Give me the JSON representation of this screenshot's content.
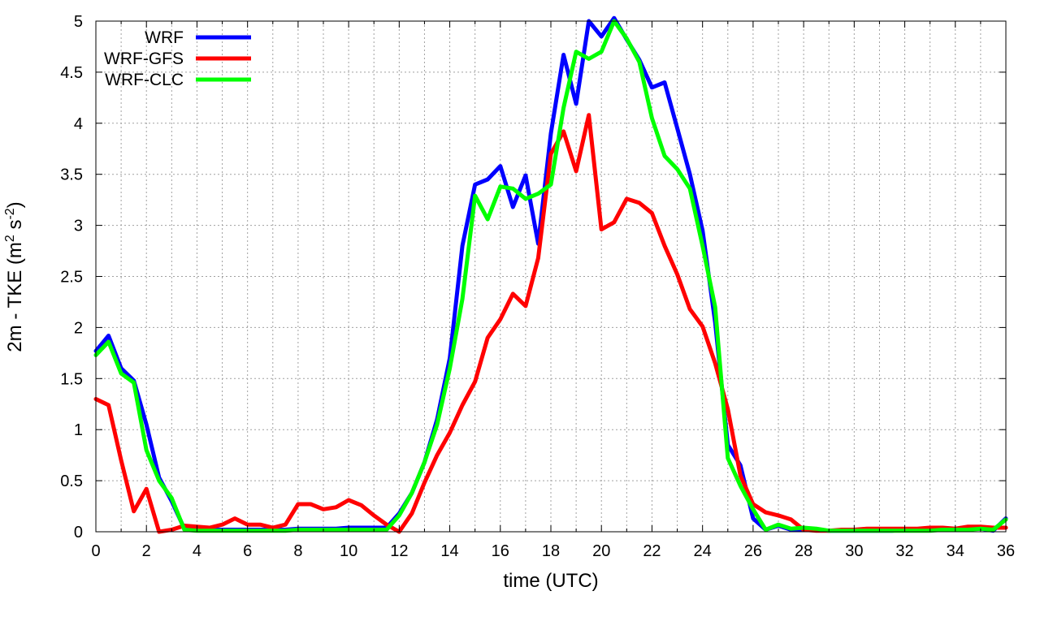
{
  "chart_data": {
    "type": "line",
    "xlabel": "time (UTC)",
    "ylabel_parts": {
      "prefix": "2m - TKE (m",
      "sup1": "2",
      "mid": " s",
      "sup2": "-2",
      "suffix": ")"
    },
    "xlim": [
      0,
      36
    ],
    "ylim": [
      0,
      5
    ],
    "xticks": [
      "0",
      "2",
      "4",
      "6",
      "8",
      "10",
      "12",
      "14",
      "16",
      "18",
      "20",
      "22",
      "24",
      "26",
      "28",
      "30",
      "32",
      "34",
      "36"
    ],
    "yticks": [
      "0",
      "0.5",
      "1",
      "1.5",
      "2",
      "2.5",
      "3",
      "3.5",
      "4",
      "4.5",
      "5"
    ],
    "grid": true,
    "legend_position": "top-left",
    "series": [
      {
        "name": "WRF",
        "color": "#0000ff",
        "x": [
          0,
          0.5,
          1,
          1.5,
          2,
          2.5,
          3,
          3.5,
          4,
          4.5,
          5,
          5.5,
          6,
          6.5,
          7,
          7.5,
          8,
          8.5,
          9,
          9.5,
          10,
          10.5,
          11,
          11.5,
          12,
          12.5,
          13,
          13.5,
          14,
          14.5,
          15,
          15.5,
          16,
          16.5,
          17,
          17.5,
          18,
          18.5,
          19,
          19.5,
          20,
          20.5,
          21,
          21.5,
          22,
          22.5,
          23,
          23.5,
          24,
          24.5,
          25,
          25.5,
          26,
          26.5,
          27,
          27.5,
          28,
          28.5,
          29,
          29.5,
          30,
          30.5,
          31,
          31.5,
          32,
          32.5,
          33,
          33.5,
          34,
          34.5,
          35,
          35.5,
          36
        ],
        "y": [
          1.77,
          1.92,
          1.6,
          1.48,
          1.05,
          0.53,
          0.3,
          0.03,
          0.02,
          0.02,
          0.02,
          0.02,
          0.02,
          0.02,
          0.02,
          0.02,
          0.03,
          0.03,
          0.03,
          0.03,
          0.04,
          0.04,
          0.04,
          0.04,
          0.18,
          0.38,
          0.68,
          1.1,
          1.7,
          2.8,
          3.4,
          3.45,
          3.58,
          3.18,
          3.49,
          2.82,
          3.9,
          4.67,
          4.19,
          5.0,
          4.85,
          5.03,
          4.82,
          4.62,
          4.35,
          4.4,
          3.95,
          3.5,
          2.95,
          2.05,
          0.85,
          0.65,
          0.13,
          0.02,
          0.06,
          0.02,
          0.02,
          0.02,
          0.01,
          0.01,
          0.01,
          0.01,
          0.01,
          0.01,
          0.02,
          0.02,
          0.02,
          0.02,
          0.02,
          0.03,
          0.03,
          0.01,
          0.13
        ]
      },
      {
        "name": "WRF-GFS",
        "color": "#ff0000",
        "x": [
          0,
          0.5,
          1,
          1.5,
          2,
          2.5,
          3,
          3.5,
          4,
          4.5,
          5,
          5.5,
          6,
          6.5,
          7,
          7.5,
          8,
          8.5,
          9,
          9.5,
          10,
          10.5,
          11,
          11.5,
          12,
          12.5,
          13,
          13.5,
          14,
          14.5,
          15,
          15.5,
          16,
          16.5,
          17,
          17.5,
          18,
          18.5,
          19,
          19.5,
          20,
          20.5,
          21,
          21.5,
          22,
          22.5,
          23,
          23.5,
          24,
          24.5,
          25,
          25.5,
          26,
          26.5,
          27,
          27.5,
          28,
          28.5,
          29,
          29.5,
          30,
          30.5,
          31,
          31.5,
          32,
          32.5,
          33,
          33.5,
          34,
          34.5,
          35,
          35.5,
          36
        ],
        "y": [
          1.3,
          1.24,
          0.7,
          0.2,
          0.42,
          0.0,
          0.02,
          0.06,
          0.05,
          0.04,
          0.07,
          0.13,
          0.07,
          0.07,
          0.04,
          0.07,
          0.27,
          0.27,
          0.22,
          0.24,
          0.31,
          0.26,
          0.16,
          0.07,
          0.0,
          0.18,
          0.48,
          0.75,
          0.97,
          1.24,
          1.47,
          1.9,
          2.08,
          2.33,
          2.21,
          2.68,
          3.7,
          3.92,
          3.53,
          4.08,
          2.96,
          3.03,
          3.26,
          3.22,
          3.12,
          2.8,
          2.52,
          2.18,
          2.01,
          1.65,
          1.2,
          0.55,
          0.27,
          0.19,
          0.16,
          0.12,
          0.02,
          0.01,
          0.01,
          0.02,
          0.02,
          0.03,
          0.03,
          0.03,
          0.03,
          0.03,
          0.04,
          0.04,
          0.03,
          0.05,
          0.05,
          0.04,
          0.04
        ]
      },
      {
        "name": "WRF-CLC",
        "color": "#00ff00",
        "x": [
          0,
          0.5,
          1,
          1.5,
          2,
          2.5,
          3,
          3.5,
          4,
          4.5,
          5,
          5.5,
          6,
          6.5,
          7,
          7.5,
          8,
          8.5,
          9,
          9.5,
          10,
          10.5,
          11,
          11.5,
          12,
          12.5,
          13,
          13.5,
          14,
          14.5,
          15,
          15.5,
          16,
          16.5,
          17,
          17.5,
          18,
          18.5,
          19,
          19.5,
          20,
          20.5,
          21,
          21.5,
          22,
          22.5,
          23,
          23.5,
          24,
          24.5,
          25,
          25.5,
          26,
          26.5,
          27,
          27.5,
          28,
          28.5,
          29,
          29.5,
          30,
          30.5,
          31,
          31.5,
          32,
          32.5,
          33,
          33.5,
          34,
          34.5,
          35,
          35.5,
          36
        ],
        "y": [
          1.73,
          1.86,
          1.55,
          1.46,
          0.8,
          0.5,
          0.33,
          0.02,
          0.01,
          0.01,
          0.01,
          0.01,
          0.01,
          0.01,
          0.01,
          0.01,
          0.02,
          0.02,
          0.02,
          0.02,
          0.02,
          0.02,
          0.02,
          0.02,
          0.16,
          0.38,
          0.68,
          1.05,
          1.6,
          2.28,
          3.29,
          3.06,
          3.38,
          3.36,
          3.26,
          3.31,
          3.4,
          4.15,
          4.7,
          4.63,
          4.7,
          5.0,
          4.83,
          4.6,
          4.05,
          3.68,
          3.55,
          3.36,
          2.8,
          2.2,
          0.72,
          0.45,
          0.22,
          0.02,
          0.07,
          0.03,
          0.04,
          0.03,
          0.01,
          0.01,
          0.01,
          0.01,
          0.01,
          0.01,
          0.01,
          0.01,
          0.01,
          0.02,
          0.02,
          0.02,
          0.03,
          0.02,
          0.12
        ]
      }
    ]
  }
}
